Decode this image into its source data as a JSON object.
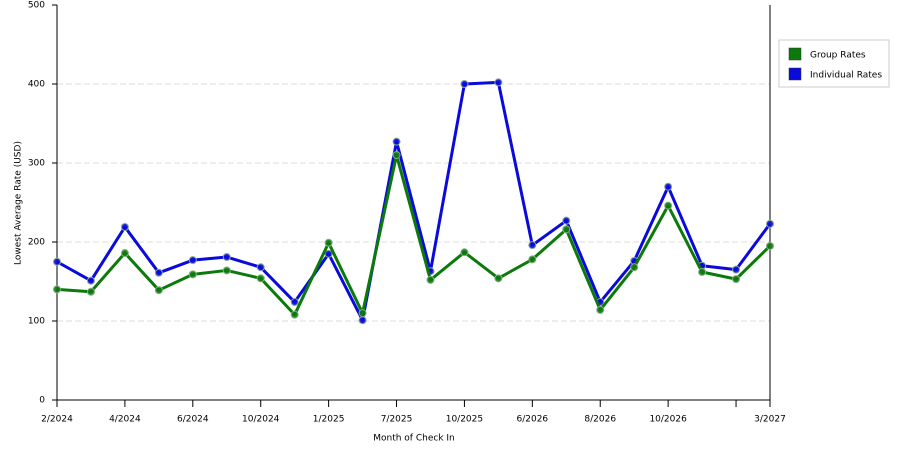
{
  "chart_data": {
    "type": "line",
    "x_label": "Month of Check In",
    "y_label": "Lowest Average Rate (USD)",
    "categories": [
      "2/2024",
      null,
      "4/2024",
      null,
      "6/2024",
      null,
      "10/2024",
      null,
      "1/2025",
      null,
      "7/2025",
      null,
      "10/2025",
      null,
      "6/2026",
      null,
      "8/2026",
      null,
      "10/2026",
      null,
      null,
      "3/2027"
    ],
    "series": [
      {
        "name": "Group Rates",
        "color": "#0a7a0a",
        "values": [
          140,
          137,
          186,
          139,
          159,
          164,
          154,
          108,
          199,
          110,
          310,
          152,
          187,
          154,
          178,
          216,
          114,
          168,
          246,
          162,
          153,
          195
        ]
      },
      {
        "name": "Individual Rates",
        "color": "#0a0adc",
        "values": [
          175,
          151,
          219,
          161,
          177,
          181,
          168,
          124,
          185,
          101,
          327,
          163,
          400,
          402,
          196,
          227,
          124,
          176,
          270,
          170,
          165,
          223
        ]
      }
    ],
    "ylim": [
      0,
      500
    ],
    "yticks": [
      0,
      100,
      200,
      300,
      400,
      500
    ],
    "grid": true,
    "legend": "right"
  }
}
